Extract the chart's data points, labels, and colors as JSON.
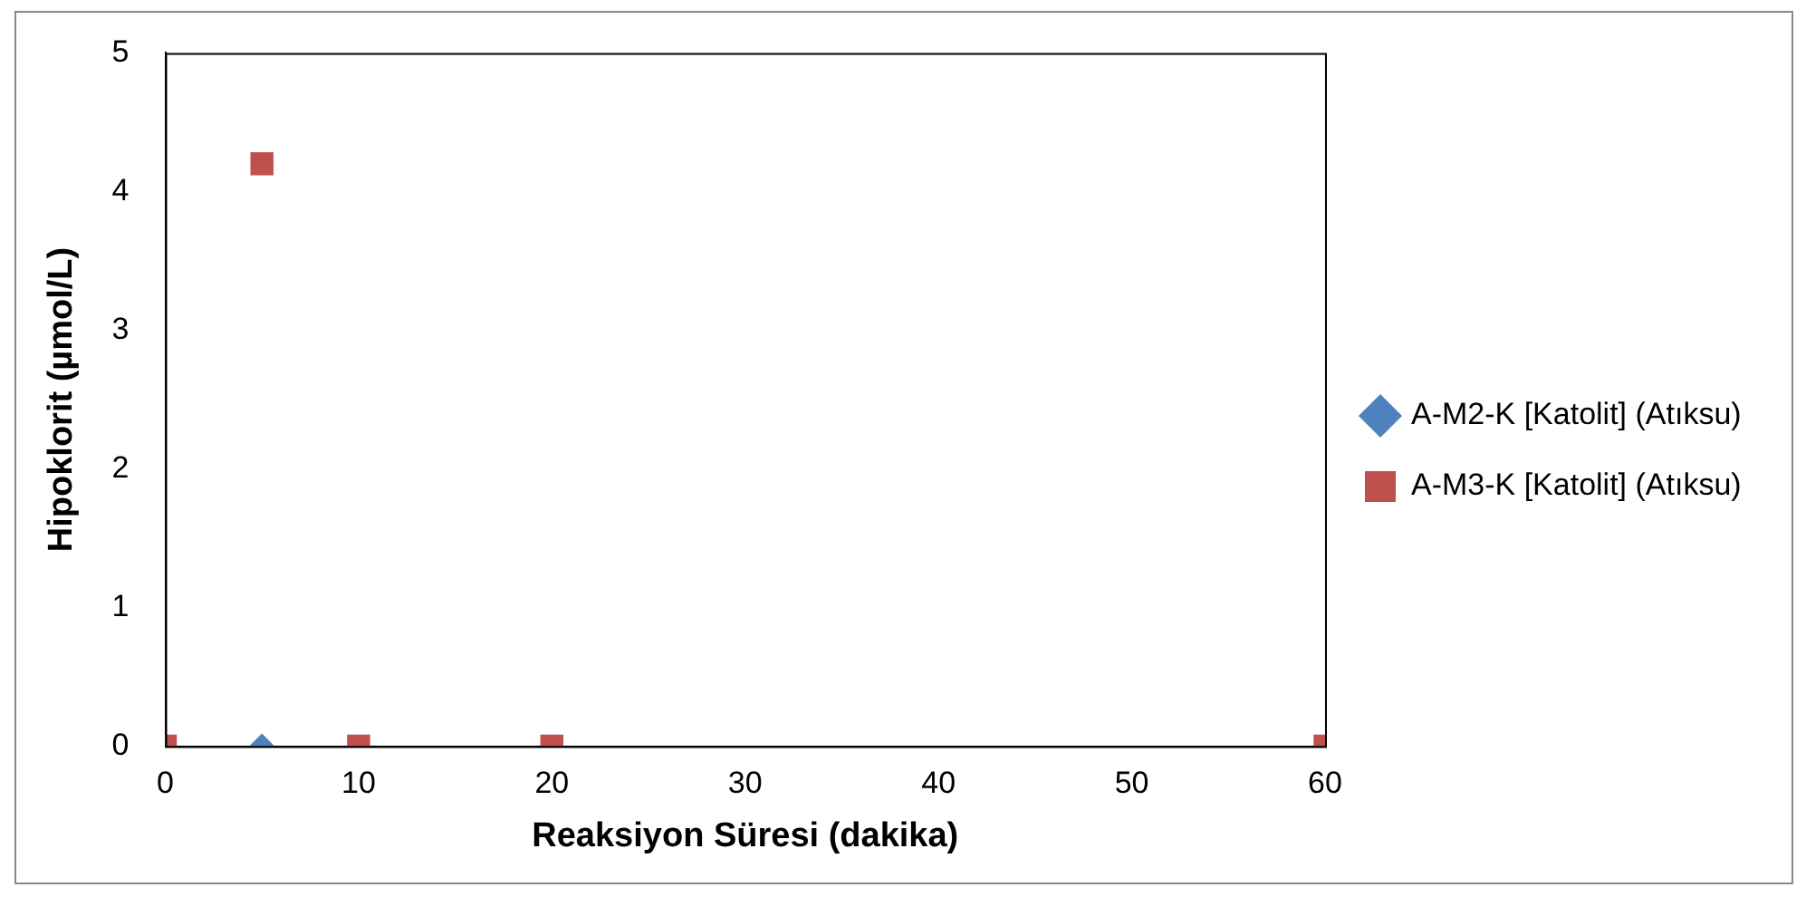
{
  "chart_data": {
    "type": "scatter",
    "xlabel": "Reaksiyon Süresi (dakika)",
    "ylabel": "Hipoklorit (µmol/L)",
    "series": [
      {
        "name": "A-M2-K [Katolit] (Atıksu)",
        "color": "#4f81bd",
        "marker": "diamond",
        "x": [
          5
        ],
        "values": [
          0
        ]
      },
      {
        "name": "A-M3-K [Katolit] (Atıksu)",
        "color": "#c0504d",
        "marker": "square",
        "x": [
          0,
          5,
          10,
          20,
          60
        ],
        "values": [
          0,
          4.2,
          0,
          0,
          0
        ]
      }
    ],
    "xlim": [
      0,
      60
    ],
    "xticks": [
      0,
      10,
      20,
      30,
      40,
      50,
      60
    ],
    "ylim": [
      0,
      5
    ],
    "yticks": [
      0,
      1,
      2,
      3,
      4,
      5
    ],
    "grid": false,
    "legend": "right"
  }
}
